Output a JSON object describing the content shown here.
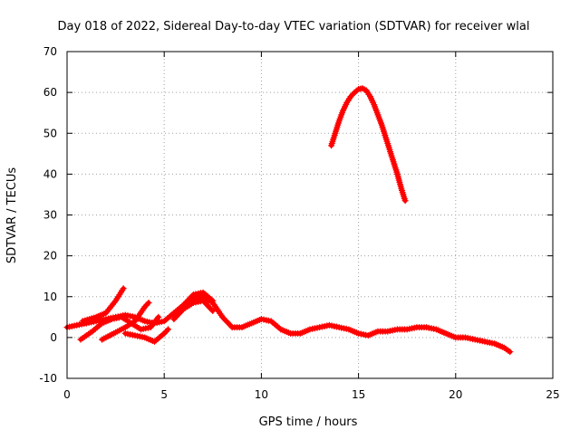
{
  "chart_data": {
    "type": "scatter",
    "title": "Day 018 of 2022, Sidereal Day-to-day VTEC variation (SDTVAR) for receiver wlal",
    "xlabel": "GPS time / hours",
    "ylabel": "SDTVAR / TECUs",
    "xlim": [
      0,
      25
    ],
    "ylim": [
      -10,
      70
    ],
    "x_ticks": [
      0,
      5,
      10,
      15,
      20,
      25
    ],
    "y_ticks": [
      -10,
      0,
      10,
      20,
      30,
      40,
      50,
      60,
      70
    ],
    "grid": true,
    "legend": "none",
    "marker": "plus",
    "color": "#ff0000",
    "series": [
      {
        "name": "main-band",
        "points": [
          [
            0,
            2.5
          ],
          [
            0.5,
            3
          ],
          [
            1,
            3.5
          ],
          [
            1.5,
            4
          ],
          [
            2,
            4.5
          ],
          [
            2.5,
            5
          ],
          [
            3,
            5.5
          ],
          [
            3.5,
            5
          ],
          [
            4,
            4
          ],
          [
            4.5,
            3.5
          ],
          [
            5,
            4
          ],
          [
            5.5,
            6
          ],
          [
            6,
            8
          ],
          [
            6.5,
            9.5
          ],
          [
            7,
            10
          ],
          [
            7.5,
            8.5
          ],
          [
            8,
            5
          ],
          [
            8.5,
            2.5
          ],
          [
            9,
            2.5
          ],
          [
            9.5,
            3.5
          ],
          [
            10,
            4.5
          ],
          [
            10.5,
            4
          ],
          [
            11,
            2
          ],
          [
            11.5,
            1
          ],
          [
            12,
            1
          ],
          [
            12.5,
            2
          ],
          [
            13,
            2.5
          ],
          [
            13.5,
            3
          ],
          [
            14,
            2.5
          ],
          [
            14.5,
            2
          ],
          [
            15,
            1
          ],
          [
            15.5,
            0.5
          ],
          [
            16,
            1.5
          ],
          [
            16.5,
            1.5
          ],
          [
            17,
            2
          ],
          [
            17.5,
            2
          ],
          [
            18,
            2.5
          ],
          [
            18.5,
            2.5
          ],
          [
            19,
            2
          ],
          [
            19.5,
            1
          ],
          [
            20,
            0
          ],
          [
            20.5,
            0
          ],
          [
            21,
            -0.5
          ],
          [
            21.5,
            -1
          ],
          [
            22,
            -1.5
          ],
          [
            22.5,
            -2.5
          ],
          [
            22.8,
            -3.5
          ]
        ]
      },
      {
        "name": "upper-ramp",
        "points": [
          [
            0.8,
            4
          ],
          [
            1.5,
            5
          ],
          [
            2,
            6
          ],
          [
            2.5,
            9
          ],
          [
            2.9,
            12
          ]
        ]
      },
      {
        "name": "mid-wiggle-a",
        "points": [
          [
            0.7,
            -0.5
          ],
          [
            1.3,
            1.5
          ],
          [
            1.8,
            3.5
          ],
          [
            2.3,
            4.5
          ],
          [
            2.8,
            5
          ],
          [
            3.3,
            3.5
          ],
          [
            3.8,
            2
          ],
          [
            4.3,
            2.5
          ],
          [
            4.7,
            5
          ]
        ]
      },
      {
        "name": "mid-wiggle-b",
        "points": [
          [
            1.8,
            -0.5
          ],
          [
            2.4,
            1
          ],
          [
            3,
            2.5
          ],
          [
            3.5,
            4
          ],
          [
            4,
            7.5
          ],
          [
            4.2,
            8.5
          ]
        ]
      },
      {
        "name": "lower-arc",
        "points": [
          [
            3,
            1
          ],
          [
            3.5,
            0.5
          ],
          [
            4,
            0
          ],
          [
            4.5,
            -1
          ],
          [
            5,
            1
          ],
          [
            5.2,
            2
          ]
        ]
      },
      {
        "name": "bump-upper",
        "points": [
          [
            5.5,
            5
          ],
          [
            6,
            8
          ],
          [
            6.5,
            10.5
          ],
          [
            7,
            11
          ],
          [
            7.5,
            9
          ]
        ]
      },
      {
        "name": "bump-lower",
        "points": [
          [
            5.5,
            4.5
          ],
          [
            6,
            7
          ],
          [
            6.5,
            8.5
          ],
          [
            7,
            9
          ],
          [
            7.5,
            6.5
          ]
        ]
      },
      {
        "name": "peak-arc",
        "points": [
          [
            13.6,
            47
          ],
          [
            13.8,
            50
          ],
          [
            14,
            53
          ],
          [
            14.2,
            55.5
          ],
          [
            14.4,
            57.5
          ],
          [
            14.6,
            59
          ],
          [
            14.8,
            60
          ],
          [
            15,
            60.8
          ],
          [
            15.2,
            61
          ],
          [
            15.4,
            60.5
          ],
          [
            15.6,
            59
          ],
          [
            15.8,
            57
          ],
          [
            16,
            54.5
          ],
          [
            16.2,
            52
          ],
          [
            16.4,
            49
          ],
          [
            16.6,
            46
          ],
          [
            16.8,
            43
          ],
          [
            17,
            40
          ],
          [
            17.2,
            36.5
          ],
          [
            17.4,
            33.5
          ]
        ]
      }
    ]
  }
}
